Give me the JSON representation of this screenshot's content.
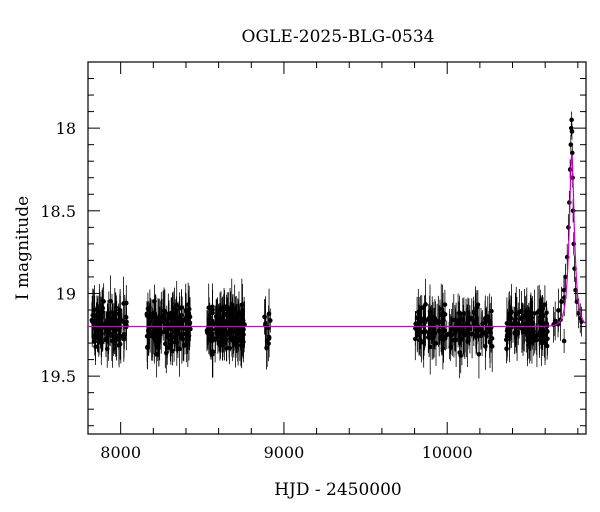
{
  "chart_data": {
    "type": "scatter",
    "title": "OGLE-2025-BLG-0534",
    "xlabel": "HJD - 2450000",
    "ylabel": "I magnitude",
    "xlim": [
      7800,
      10850
    ],
    "ylim": [
      19.85,
      17.6
    ],
    "y_inverted": true,
    "x_ticks": [
      8000,
      9000,
      10000
    ],
    "y_ticks": [
      18,
      18.5,
      19,
      19.5
    ],
    "grid": false,
    "colors": {
      "points": "#000000",
      "model": "#cc00cc"
    },
    "season_windows": [
      [
        7820,
        8040,
        110
      ],
      [
        8160,
        8430,
        150
      ],
      [
        8520,
        8760,
        150
      ],
      [
        8880,
        8920,
        12
      ],
      [
        9800,
        9860,
        25
      ],
      [
        9860,
        10280,
        140
      ],
      [
        10360,
        10620,
        120
      ],
      [
        10650,
        10720,
        8
      ]
    ],
    "baseline_mag": 19.2,
    "baseline_scatter": 0.09,
    "error_bar": 0.12,
    "peak_points": [
      [
        10700,
        19.05,
        0.09
      ],
      [
        10715,
        18.98,
        0.09
      ],
      [
        10725,
        18.9,
        0.08
      ],
      [
        10735,
        18.78,
        0.08
      ],
      [
        10742,
        18.6,
        0.08
      ],
      [
        10748,
        18.45,
        0.07
      ],
      [
        10753,
        18.25,
        0.06
      ],
      [
        10757,
        18.1,
        0.06
      ],
      [
        10760,
        18.0,
        0.05
      ],
      [
        10762,
        17.95,
        0.05
      ],
      [
        10764,
        18.02,
        0.05
      ],
      [
        10766,
        18.15,
        0.06
      ],
      [
        10768,
        18.3,
        0.06
      ],
      [
        10771,
        18.5,
        0.07
      ],
      [
        10775,
        18.7,
        0.07
      ],
      [
        10780,
        18.85,
        0.08
      ],
      [
        10786,
        18.98,
        0.08
      ],
      [
        10794,
        19.05,
        0.09
      ],
      [
        10805,
        19.12,
        0.09
      ],
      [
        10815,
        19.15,
        0.09
      ],
      [
        10823,
        19.17,
        0.09
      ]
    ],
    "model": {
      "t0": 10763,
      "tE": 28,
      "u0": 0.45,
      "baseline": 19.2
    }
  }
}
